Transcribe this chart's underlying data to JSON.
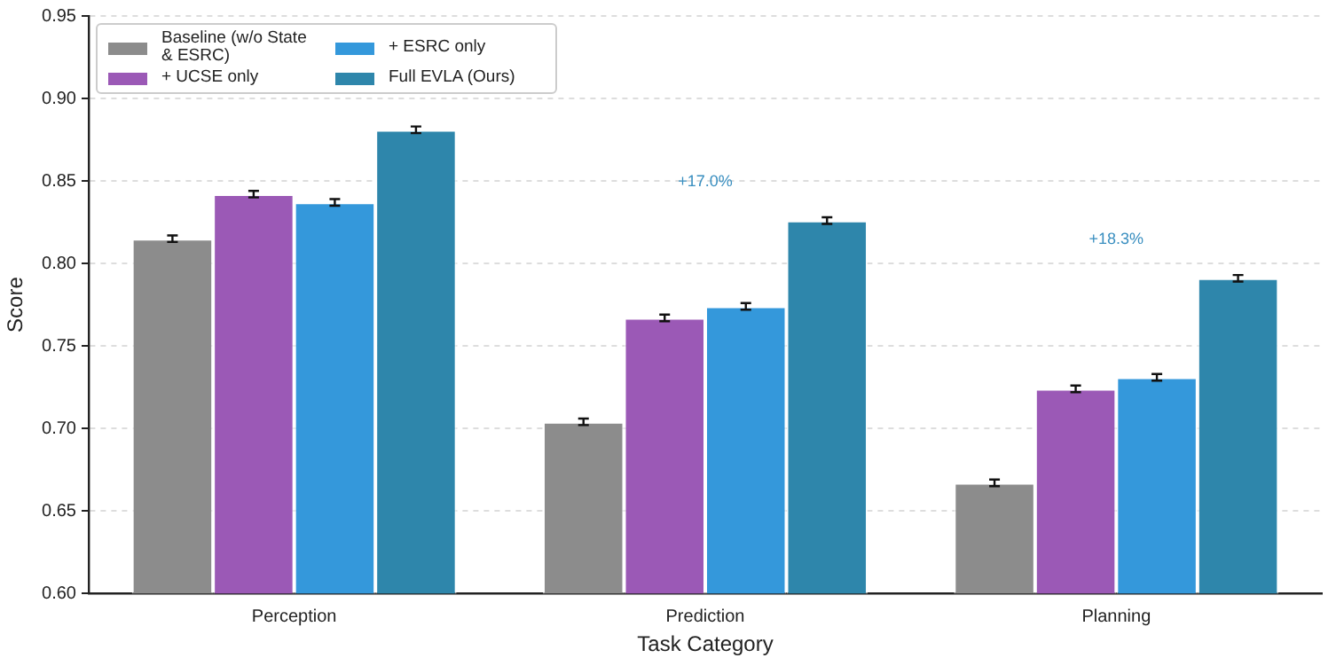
{
  "chart_data": {
    "type": "bar",
    "xlabel": "Task Category",
    "ylabel": "Score",
    "categories": [
      "Perception",
      "Prediction",
      "Planning"
    ],
    "series": [
      {
        "name": "Baseline (w/o State & ESRC)",
        "color": "#8c8c8c",
        "values": [
          0.815,
          0.704,
          0.667
        ],
        "errors": [
          0.002,
          0.002,
          0.002
        ]
      },
      {
        "name": "+ UCSE only",
        "color": "#9b59b6",
        "values": [
          0.842,
          0.767,
          0.724
        ],
        "errors": [
          0.002,
          0.002,
          0.002
        ]
      },
      {
        "name": "+ ESRC only",
        "color": "#3498db",
        "values": [
          0.837,
          0.774,
          0.731
        ],
        "errors": [
          0.002,
          0.002,
          0.002
        ]
      },
      {
        "name": "Full EVLA (Ours)",
        "color": "#2e86ab",
        "values": [
          0.881,
          0.826,
          0.791
        ],
        "errors": [
          0.002,
          0.002,
          0.002
        ]
      }
    ],
    "ylim": [
      0.6,
      0.95
    ],
    "yticks": [
      {
        "value": 0.6,
        "label": "0.60"
      },
      0.65,
      {
        "value": 0.7,
        "label": "0.70"
      },
      0.75,
      {
        "value": 0.8,
        "label": "0.80"
      },
      0.85,
      {
        "value": 0.9,
        "label": "0.90"
      },
      0.95
    ],
    "grid": "y",
    "legend": "top left",
    "annotations": [
      "+17.0%",
      "+18.3%"
    ]
  }
}
